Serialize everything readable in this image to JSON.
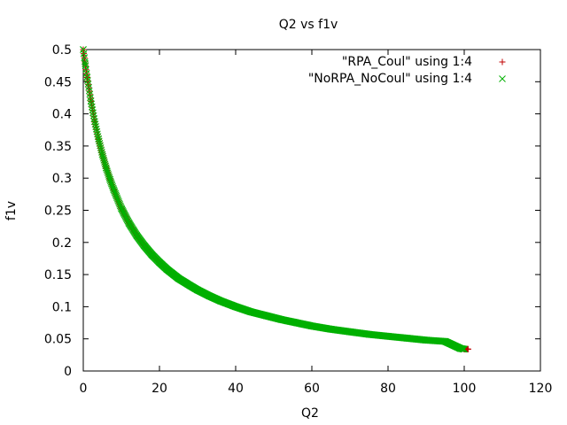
{
  "chart_data": {
    "type": "scatter",
    "title": "Q2 vs f1v",
    "xlabel": "Q2",
    "ylabel": "f1v",
    "xlim": [
      0,
      120
    ],
    "ylim": [
      0,
      0.5
    ],
    "xticks": [
      0,
      20,
      40,
      60,
      80,
      100,
      120
    ],
    "yticks": [
      0,
      0.05,
      0.1,
      0.15,
      0.2,
      0.25,
      0.3,
      0.35,
      0.4,
      0.45,
      0.5
    ],
    "grid": false,
    "legend_position": "top-right",
    "series": [
      {
        "name": "\"RPA_Coul\" using 1:4",
        "marker": "plus",
        "color": "#c00000",
        "points": [
          [
            0,
            0.5
          ],
          [
            0.5,
            0.478
          ],
          [
            1,
            0.457
          ],
          [
            2,
            0.42
          ],
          [
            3,
            0.388
          ],
          [
            4,
            0.361
          ],
          [
            5,
            0.337
          ],
          [
            6,
            0.316
          ],
          [
            7,
            0.298
          ],
          [
            8,
            0.282
          ],
          [
            10,
            0.253
          ],
          [
            12,
            0.23
          ],
          [
            14,
            0.211
          ],
          [
            16,
            0.195
          ],
          [
            18,
            0.181
          ],
          [
            20,
            0.169
          ],
          [
            22,
            0.158
          ],
          [
            25,
            0.144
          ],
          [
            28,
            0.133
          ],
          [
            30,
            0.126
          ],
          [
            33,
            0.117
          ],
          [
            36,
            0.109
          ],
          [
            40,
            0.1
          ],
          [
            44,
            0.092
          ],
          [
            48,
            0.086
          ],
          [
            52,
            0.08
          ],
          [
            56,
            0.075
          ],
          [
            60,
            0.07
          ],
          [
            65,
            0.065
          ],
          [
            70,
            0.061
          ],
          [
            75,
            0.057
          ],
          [
            80,
            0.054
          ],
          [
            85,
            0.051
          ],
          [
            90,
            0.048
          ],
          [
            95,
            0.046
          ],
          [
            100,
            0.034
          ],
          [
            100.5,
            0.034
          ],
          [
            101,
            0.034
          ]
        ]
      },
      {
        "name": "\"NoRPA_NoCoul\" using 1:4",
        "marker": "cross",
        "color": "#00b000",
        "points": [
          [
            0,
            0.5
          ],
          [
            0.5,
            0.478
          ],
          [
            1,
            0.457
          ],
          [
            2,
            0.42
          ],
          [
            3,
            0.388
          ],
          [
            4,
            0.361
          ],
          [
            5,
            0.337
          ],
          [
            6,
            0.316
          ],
          [
            7,
            0.298
          ],
          [
            8,
            0.282
          ],
          [
            10,
            0.253
          ],
          [
            12,
            0.23
          ],
          [
            14,
            0.211
          ],
          [
            16,
            0.195
          ],
          [
            18,
            0.181
          ],
          [
            20,
            0.169
          ],
          [
            22,
            0.158
          ],
          [
            25,
            0.144
          ],
          [
            28,
            0.133
          ],
          [
            30,
            0.126
          ],
          [
            33,
            0.117
          ],
          [
            36,
            0.109
          ],
          [
            40,
            0.1
          ],
          [
            44,
            0.092
          ],
          [
            48,
            0.086
          ],
          [
            52,
            0.08
          ],
          [
            56,
            0.075
          ],
          [
            60,
            0.07
          ],
          [
            65,
            0.065
          ],
          [
            70,
            0.061
          ],
          [
            75,
            0.057
          ],
          [
            80,
            0.054
          ],
          [
            85,
            0.051
          ],
          [
            90,
            0.048
          ],
          [
            95,
            0.046
          ],
          [
            99,
            0.035
          ],
          [
            100,
            0.034
          ]
        ]
      }
    ]
  }
}
